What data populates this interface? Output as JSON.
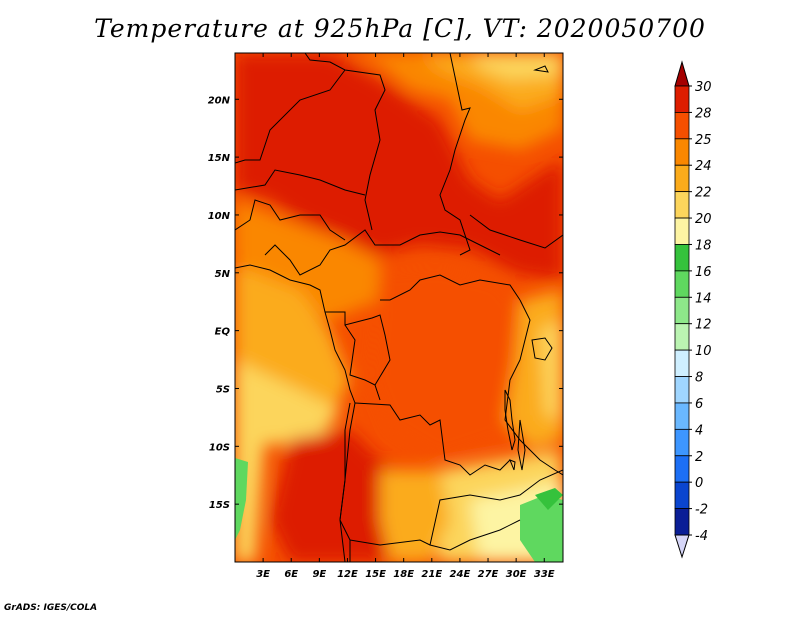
{
  "title": "Temperature at 925hPa [C], VT: 2020050700",
  "credit": "GrADS: IGES/COLA",
  "map": {
    "lon_range": [
      0,
      35
    ],
    "lat_range": [
      -20,
      24
    ],
    "lon_ticks": [
      "3E",
      "6E",
      "9E",
      "12E",
      "15E",
      "18E",
      "21E",
      "24E",
      "27E",
      "30E",
      "33E"
    ],
    "lon_tick_values": [
      3,
      6,
      9,
      12,
      15,
      18,
      21,
      24,
      27,
      30,
      33
    ],
    "lat_ticks": [
      "20N",
      "15N",
      "10N",
      "5N",
      "EQ",
      "5S",
      "10S",
      "15S"
    ],
    "lat_tick_values": [
      20,
      15,
      10,
      5,
      0,
      -5,
      -10,
      -15
    ]
  },
  "colorbar": {
    "labels": [
      "30",
      "28",
      "25",
      "24",
      "22",
      "20",
      "18",
      "16",
      "14",
      "12",
      "10",
      "8",
      "6",
      "4",
      "2",
      "0",
      "-2",
      "-4"
    ],
    "colors": [
      "#a50000",
      "#dd1d00",
      "#f54f00",
      "#fa8700",
      "#fbab1b",
      "#fcd55c",
      "#fdf4a3",
      "#35c23c",
      "#5fd85f",
      "#8ee88a",
      "#bbf4b2",
      "#cfefff",
      "#a0d6ff",
      "#6ab8ff",
      "#3d96ff",
      "#1c6ff5",
      "#0a45cf",
      "#0a1e96",
      "#d6d6f8"
    ]
  }
}
